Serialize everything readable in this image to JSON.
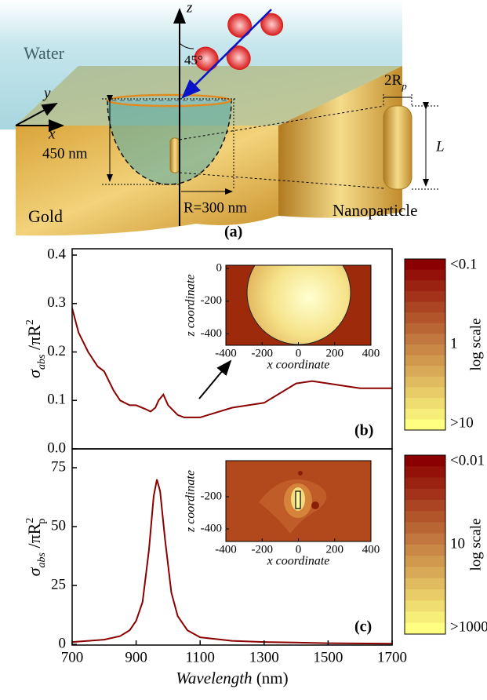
{
  "diagram": {
    "water": "Water",
    "gold": "Gold",
    "z": "z",
    "y": "y",
    "x": "x",
    "angle": "45°",
    "depth": "450 nm",
    "radius": "R=300 nm",
    "width": "2R",
    "width_sub": "p",
    "length": "L",
    "nanoparticle": "Nanoparticle",
    "panel_label": "(a)"
  },
  "chart_data": [
    {
      "type": "line",
      "xlim": [
        700,
        1700
      ],
      "ylim": [
        0,
        0.413
      ],
      "yticks": [
        {
          "value": 0,
          "label": "0.0"
        },
        0.1,
        0.2,
        0.3,
        0.4
      ],
      "y_label": {
        "main": "σ",
        "sub": "abs",
        "rest": " /πR",
        "sup": "2"
      },
      "x": [
        700,
        720,
        750,
        780,
        800,
        830,
        850,
        880,
        900,
        930,
        945,
        960,
        970,
        985,
        1000,
        1030,
        1050,
        1100,
        1150,
        1200,
        1250,
        1300,
        1350,
        1400,
        1450,
        1500,
        1550,
        1600,
        1650,
        1700
      ],
      "series": [
        {
          "color": "#8b0000",
          "values": [
            0.29,
            0.24,
            0.2,
            0.17,
            0.16,
            0.12,
            0.1,
            0.09,
            0.09,
            0.082,
            0.077,
            0.085,
            0.1,
            0.112,
            0.09,
            0.07,
            0.065,
            0.065,
            0.075,
            0.085,
            0.09,
            0.095,
            0.115,
            0.135,
            0.14,
            0.135,
            0.13,
            0.125,
            0.125,
            0.125
          ]
        }
      ],
      "panel_label": "(b)",
      "inset": {
        "xlim": [
          -400,
          400
        ],
        "ylim": [
          -470,
          20
        ],
        "xticks": [
          -400,
          -200,
          0,
          200,
          400
        ],
        "yticks": [
          0,
          -200,
          -400
        ],
        "xlabel": "x coordinate",
        "ylabel": "z coordinate"
      },
      "colorbar": {
        "labels": [
          "<0.1",
          "1",
          ">10"
        ],
        "title": "log scale"
      }
    },
    {
      "type": "line",
      "xlim": [
        700,
        1700
      ],
      "ylim": [
        -0.3,
        83
      ],
      "yticks": [
        0,
        25,
        50,
        75
      ],
      "xticks": [
        700,
        900,
        1100,
        1300,
        1500,
        1700
      ],
      "y_label": {
        "main": "σ",
        "sub": "abs",
        "rest": " /πR",
        "sup": "2",
        "sub2": "p"
      },
      "x_label": {
        "main": "Wavelength",
        "rest": " (nm)"
      },
      "x": [
        700,
        800,
        850,
        880,
        900,
        920,
        940,
        955,
        965,
        975,
        990,
        1010,
        1030,
        1060,
        1100,
        1200,
        1300,
        1500,
        1700
      ],
      "series": [
        {
          "color": "#8b0000",
          "values": [
            1,
            2,
            3.5,
            6,
            10,
            18,
            40,
            63,
            70,
            65,
            45,
            22,
            12,
            6,
            3,
            1.5,
            1,
            0.5,
            0.3
          ]
        }
      ],
      "panel_label": "(c)",
      "inset": {
        "xlim": [
          -400,
          400
        ],
        "ylim": [
          -478,
          24
        ],
        "xticks": [
          -400,
          -200,
          0,
          200,
          400
        ],
        "yticks": [
          -200,
          -400
        ],
        "xlabel": "x coordinate",
        "ylabel": "z coordinate"
      },
      "colorbar": {
        "labels": [
          "<0.01",
          "10",
          ">1000"
        ],
        "title": "log scale"
      }
    }
  ]
}
